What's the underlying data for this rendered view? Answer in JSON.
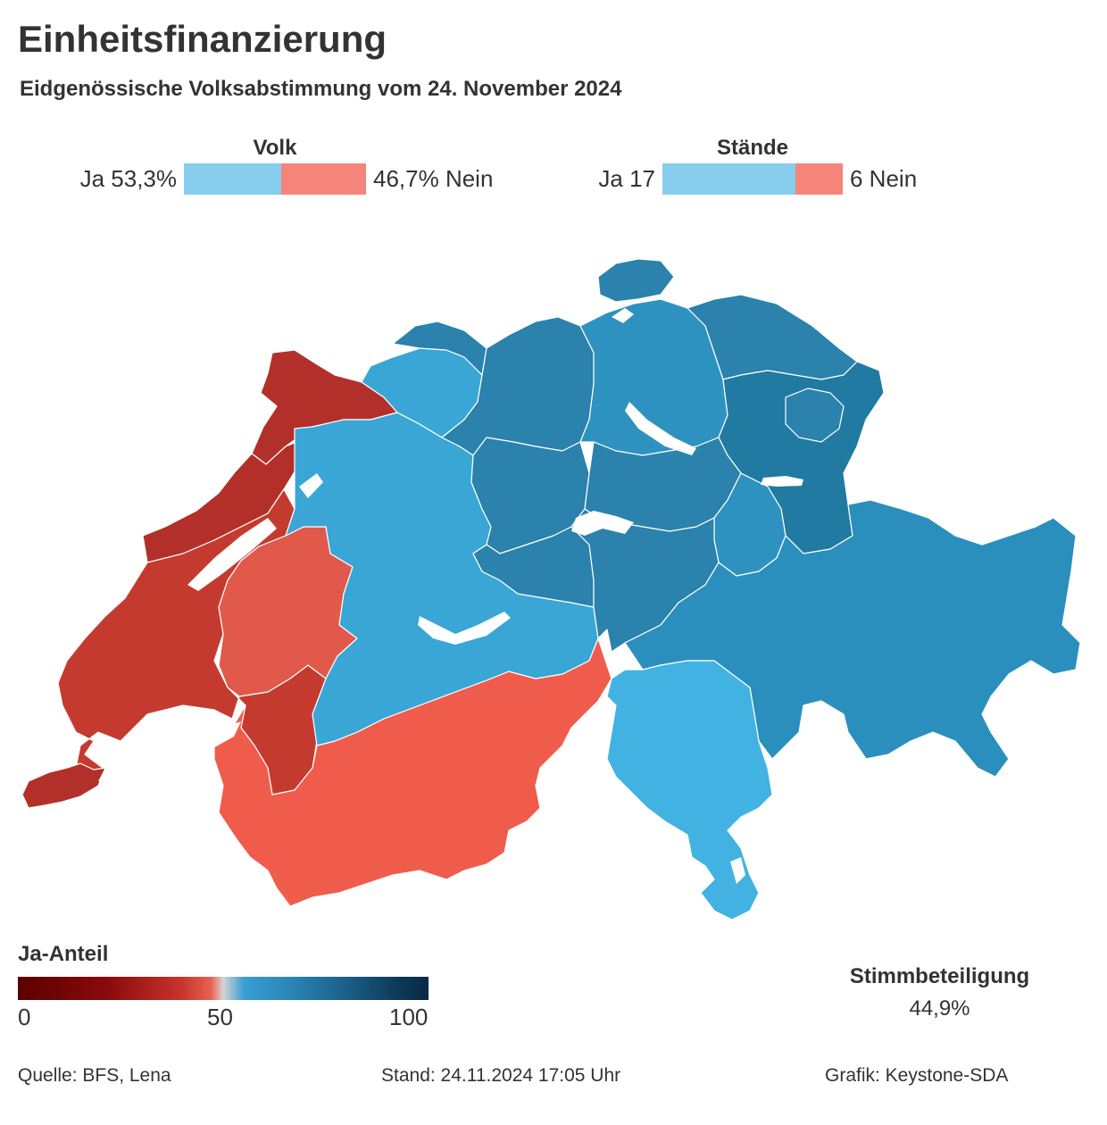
{
  "header": {
    "title": "Einheitsfinanzierung",
    "subtitle": "Eidgenössische Volksabstimmung vom 24. November 2024"
  },
  "results": {
    "volk": {
      "title": "Volk",
      "yes_label": "Ja 53,3%",
      "no_label": "46,7% Nein",
      "yes_share": 0.533
    },
    "staende": {
      "title": "Stände",
      "yes_label": "Ja 17",
      "no_label": "6 Nein",
      "yes_share": 0.739
    }
  },
  "legend": {
    "title": "Ja-Anteil",
    "ticks": [
      "0",
      "50",
      "100"
    ]
  },
  "turnout": {
    "title": "Stimmbeteiligung",
    "value": "44,9%"
  },
  "footer": {
    "source": "Quelle: BFS, Lena",
    "stand": "Stand: 24.11.2024 17:05 Uhr",
    "credit": "Grafik: Keystone-SDA"
  },
  "colors": {
    "yes_bar": "#87ceee",
    "no_bar": "#f5857b",
    "dark_red": "#b3302a",
    "mid_red": "#c53a2f",
    "light_red": "#e0594b",
    "salmon_red": "#f05c4b",
    "light_blue": "#3aa6d5",
    "ticino_blue": "#42b2e2",
    "mid_blue": "#2e92c0",
    "dark_blue": "#2a82ad",
    "darkest_blue": "#217aa2",
    "lake": "#ffffff"
  }
}
